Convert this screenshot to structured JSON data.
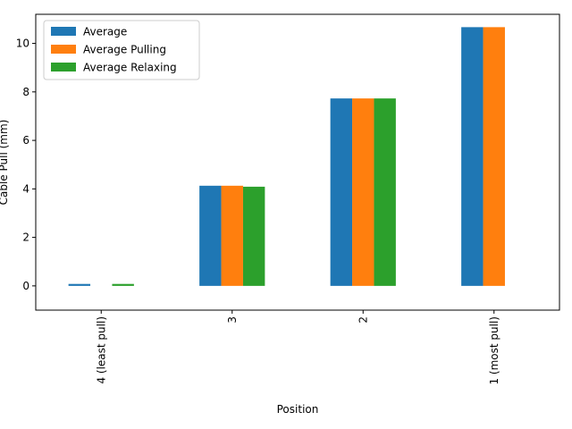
{
  "chart_data": {
    "type": "bar",
    "title": "",
    "xlabel": "Position",
    "ylabel": "Cable Pull (mm)",
    "categories": [
      "4 (least pull)",
      "3",
      "2",
      "1 (most pull)"
    ],
    "series": [
      {
        "name": "Average",
        "color": "#1f77b4",
        "values": [
          0.08,
          4.13,
          7.73,
          10.67
        ]
      },
      {
        "name": "Average Pulling",
        "color": "#ff7f0e",
        "values": [
          0.0,
          4.13,
          7.73,
          10.67
        ]
      },
      {
        "name": "Average Relaxing",
        "color": "#2ca02c",
        "values": [
          0.08,
          4.09,
          7.73,
          0.0
        ]
      }
    ],
    "ylim": [
      -1,
      11.2
    ],
    "yticks": [
      0,
      2,
      4,
      6,
      8,
      10
    ],
    "legend": "top-left",
    "grid": false
  }
}
